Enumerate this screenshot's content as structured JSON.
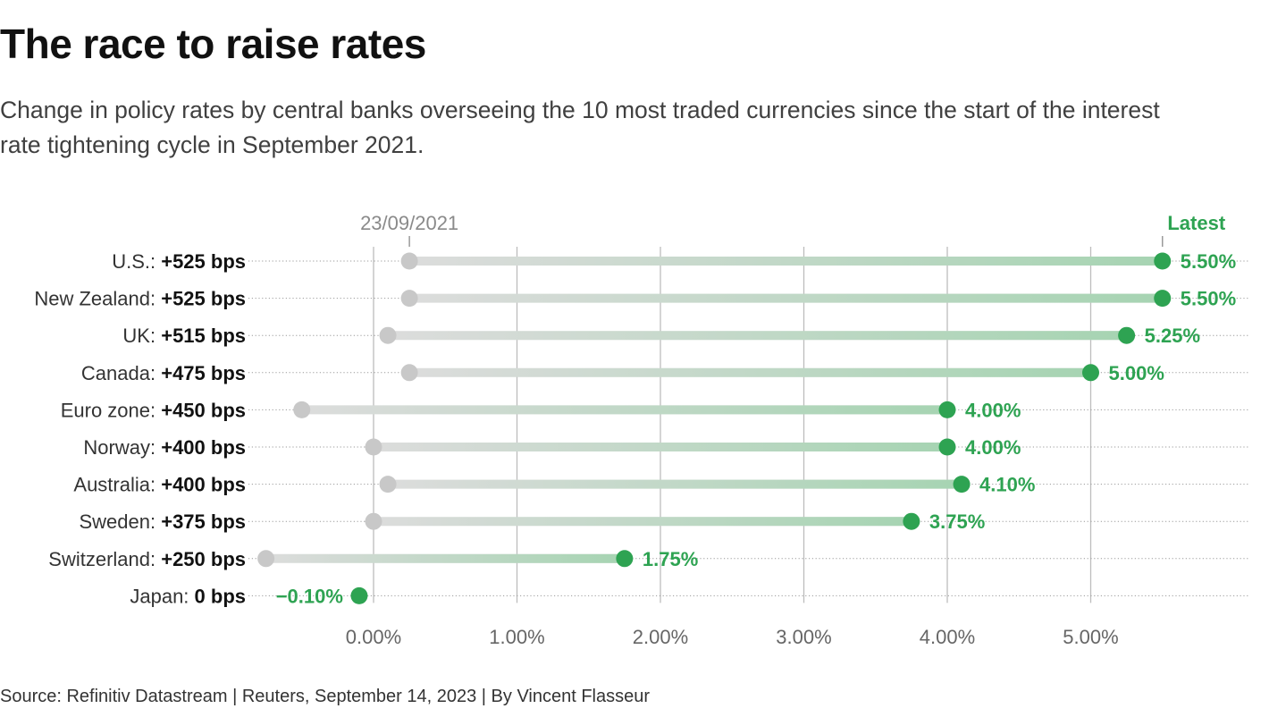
{
  "header": {
    "title": "The race to raise rates",
    "subtitle": "Change in policy rates by central banks overseeing the 10 most traded currencies since the start of the interest\nrate tightening cycle in September 2021."
  },
  "footer": {
    "source": "Source: Refinitiv Datastream | Reuters, September 14, 2023 | By Vincent Flasseur"
  },
  "colors": {
    "start_dot": "#c8c8c8",
    "start_track": "#dcdcdc",
    "latest": "#2ea352",
    "latest_track": "#a6d4b2",
    "label": "#333333",
    "tick": "#666666"
  },
  "chart_data": {
    "type": "dumbbell",
    "title": "The race to raise rates",
    "start_label": "23/09/2021",
    "end_label": "Latest",
    "xlim": [
      -0.8,
      6.1
    ],
    "xticks": [
      0,
      1,
      2,
      3,
      4,
      5
    ],
    "xtick_labels": [
      "0.00%",
      "1.00%",
      "2.00%",
      "3.00%",
      "4.00%",
      "5.00%"
    ],
    "rows": [
      {
        "country": "U.S.:",
        "change": "+525 bps",
        "start": 0.25,
        "latest": 5.5,
        "latest_label": "5.50%"
      },
      {
        "country": "New Zealand:",
        "change": "+525 bps",
        "start": 0.25,
        "latest": 5.5,
        "latest_label": "5.50%"
      },
      {
        "country": "UK:",
        "change": "+515 bps",
        "start": 0.1,
        "latest": 5.25,
        "latest_label": "5.25%"
      },
      {
        "country": "Canada:",
        "change": "+475 bps",
        "start": 0.25,
        "latest": 5.0,
        "latest_label": "5.00%"
      },
      {
        "country": "Euro zone:",
        "change": "+450 bps",
        "start": -0.5,
        "latest": 4.0,
        "latest_label": "4.00%"
      },
      {
        "country": "Norway:",
        "change": "+400 bps",
        "start": 0.0,
        "latest": 4.0,
        "latest_label": "4.00%"
      },
      {
        "country": "Australia:",
        "change": "+400 bps",
        "start": 0.1,
        "latest": 4.1,
        "latest_label": "4.10%"
      },
      {
        "country": "Sweden:",
        "change": "+375 bps",
        "start": 0.0,
        "latest": 3.75,
        "latest_label": "3.75%"
      },
      {
        "country": "Switzerland:",
        "change": "+250 bps",
        "start": -0.75,
        "latest": 1.75,
        "latest_label": "1.75%"
      },
      {
        "country": "Japan:",
        "change": "0 bps",
        "start": -0.1,
        "latest": -0.1,
        "latest_label": "−0.10%"
      }
    ]
  }
}
